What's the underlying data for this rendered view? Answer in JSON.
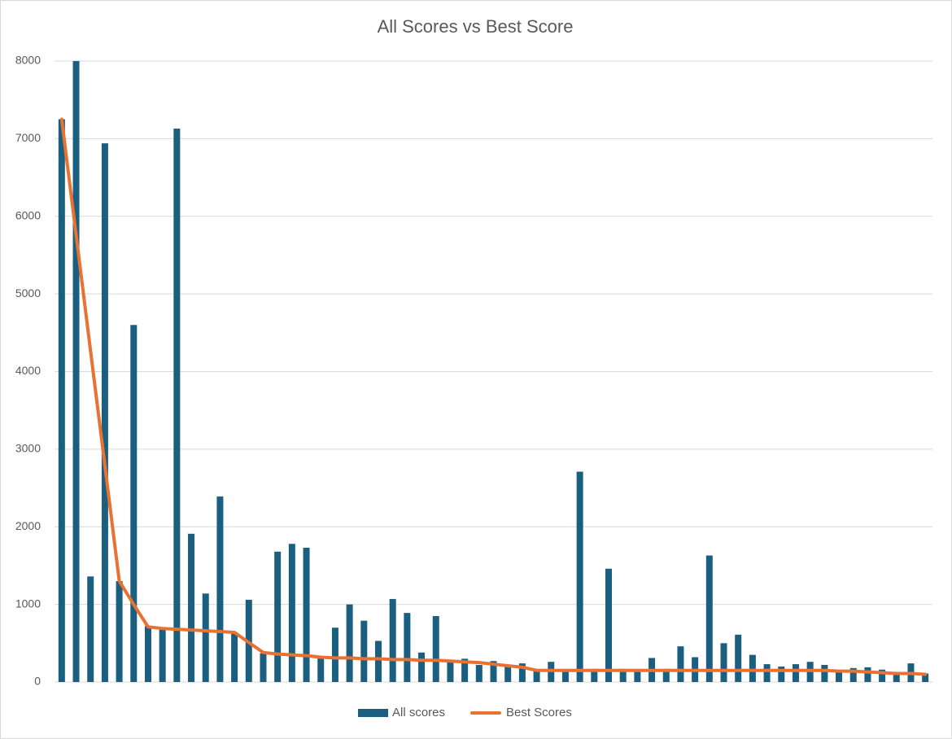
{
  "chart_data": {
    "type": "bar_line",
    "title": "All Scores vs Best Score",
    "categories": [
      null,
      null,
      null,
      null,
      null,
      null,
      null,
      null,
      null,
      null,
      null,
      null,
      null,
      null,
      null,
      null,
      null,
      null,
      null,
      null,
      null,
      null,
      null,
      null,
      null,
      null,
      null,
      null,
      null,
      null,
      null,
      null,
      null,
      null,
      null,
      null,
      null,
      null,
      null,
      null,
      null,
      null,
      null,
      null,
      null,
      null,
      null,
      null,
      null,
      null,
      null,
      null,
      null,
      null,
      null,
      null,
      null,
      null,
      null,
      null,
      null
    ],
    "series": [
      {
        "name": "All scores",
        "type": "bar",
        "color": "#1b5f80",
        "values": [
          7250,
          8000,
          1360,
          6940,
          1300,
          4600,
          720,
          700,
          7130,
          1910,
          1140,
          2390,
          640,
          1060,
          370,
          1680,
          1780,
          1730,
          310,
          700,
          1000,
          790,
          530,
          1070,
          890,
          380,
          850,
          270,
          300,
          220,
          270,
          200,
          240,
          150,
          260,
          150,
          2710,
          170,
          1460,
          170,
          160,
          310,
          170,
          460,
          320,
          1630,
          500,
          610,
          350,
          230,
          200,
          230,
          260,
          220,
          150,
          180,
          190,
          160,
          110,
          240,
          110
        ]
      },
      {
        "name": "Best Scores",
        "type": "line",
        "color": "#e97132",
        "values": [
          7250,
          5760,
          4270,
          2790,
          1300,
          1000,
          710,
          690,
          680,
          670,
          660,
          650,
          640,
          510,
          380,
          360,
          350,
          340,
          320,
          310,
          310,
          300,
          300,
          290,
          290,
          280,
          280,
          270,
          260,
          250,
          230,
          210,
          190,
          150,
          150,
          150,
          150,
          150,
          150,
          150,
          150,
          150,
          150,
          150,
          150,
          150,
          150,
          150,
          150,
          150,
          150,
          150,
          150,
          150,
          140,
          140,
          130,
          120,
          110,
          110,
          100
        ]
      }
    ],
    "ylim": [
      0,
      8000
    ],
    "yticks": [
      0,
      1000,
      2000,
      3000,
      4000,
      5000,
      6000,
      7000,
      8000
    ],
    "grid": true,
    "legend": "bottom"
  }
}
